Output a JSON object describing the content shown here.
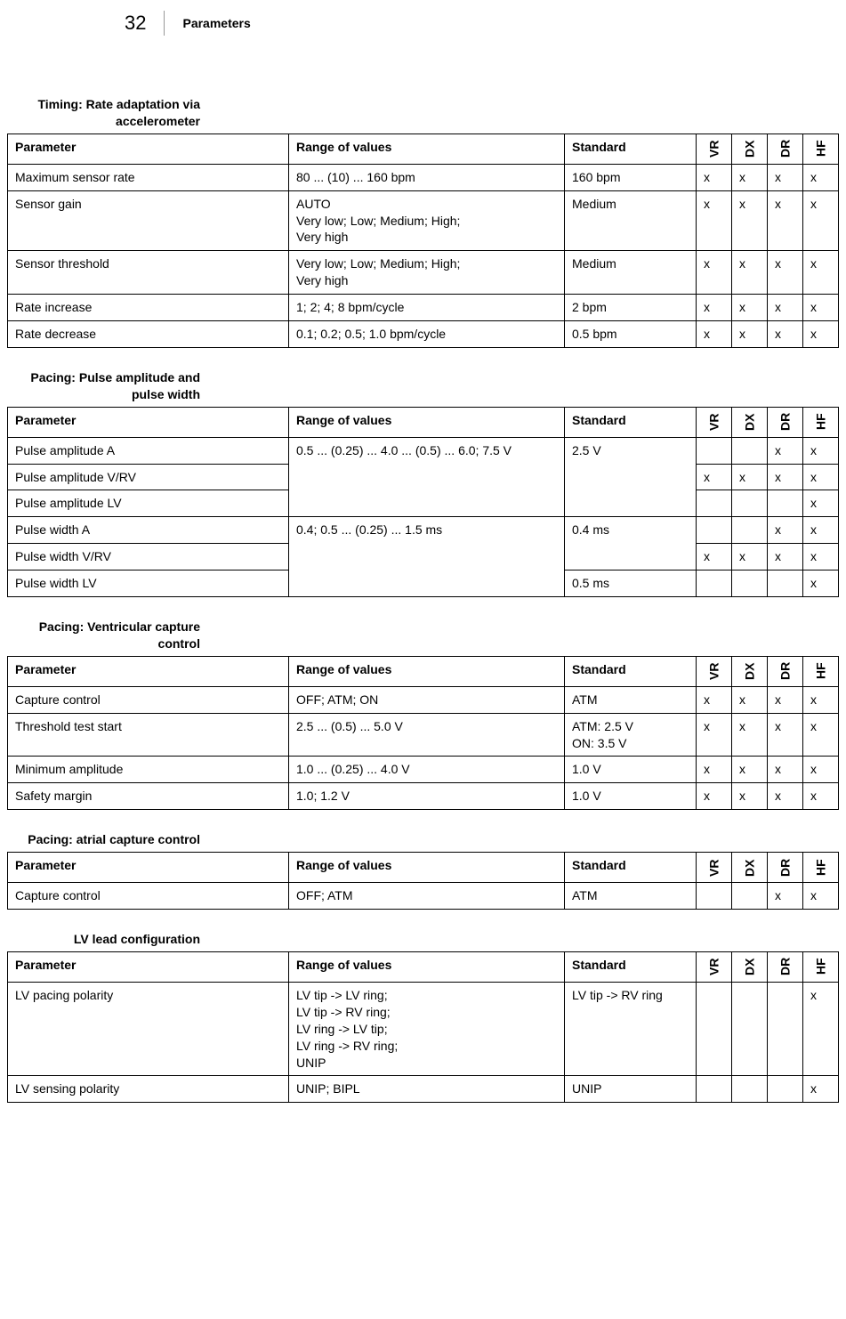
{
  "header": {
    "page_number": "32",
    "title": "Parameters"
  },
  "col_headers": {
    "parameter": "Parameter",
    "range": "Range of values",
    "standard": "Standard",
    "vr": "VR",
    "dx": "DX",
    "dr": "DR",
    "hf": "HF"
  },
  "sections": [
    {
      "title": "Timing: Rate adaptation via accelerometer",
      "rows": [
        {
          "param": "Maximum sensor rate",
          "range": "80 ... (10) ... 160 bpm",
          "std": "160 bpm",
          "vr": "x",
          "dx": "x",
          "dr": "x",
          "hf": "x"
        },
        {
          "param": "Sensor gain",
          "range": "AUTO\nVery low; Low; Medium; High;\nVery high",
          "std": "Medium",
          "vr": "x",
          "dx": "x",
          "dr": "x",
          "hf": "x"
        },
        {
          "param": "Sensor threshold",
          "range": "Very low; Low; Medium; High;\nVery high",
          "std": "Medium",
          "vr": "x",
          "dx": "x",
          "dr": "x",
          "hf": "x"
        },
        {
          "param": "Rate increase",
          "range": "1; 2; 4; 8 bpm/cycle",
          "std": "2 bpm",
          "vr": "x",
          "dx": "x",
          "dr": "x",
          "hf": "x"
        },
        {
          "param": "Rate decrease",
          "range": "0.1; 0.2; 0.5; 1.0 bpm/cycle",
          "std": "0.5 bpm",
          "vr": "x",
          "dx": "x",
          "dr": "x",
          "hf": "x"
        }
      ]
    },
    {
      "title": "Pacing: Pulse amplitude and pulse width",
      "rows": [
        {
          "param": "Pulse amplitude A",
          "range": "0.5 ... (0.25) ... 4.0 ... (0.5) ... 6.0; 7.5 V",
          "range_span": 3,
          "std": "2.5 V",
          "std_span": 3,
          "vr": "",
          "dx": "",
          "dr": "x",
          "hf": "x"
        },
        {
          "param": "Pulse amplitude V/RV",
          "vr": "x",
          "dx": "x",
          "dr": "x",
          "hf": "x"
        },
        {
          "param": "Pulse amplitude LV",
          "vr": "",
          "dx": "",
          "dr": "",
          "hf": "x"
        },
        {
          "param": "Pulse width A",
          "range": "0.4; 0.5 ... (0.25) ... 1.5 ms",
          "range_span": 3,
          "std": "0.4 ms",
          "std_span": 2,
          "vr": "",
          "dx": "",
          "dr": "x",
          "hf": "x"
        },
        {
          "param": "Pulse width V/RV",
          "vr": "x",
          "dx": "x",
          "dr": "x",
          "hf": "x"
        },
        {
          "param": "Pulse width LV",
          "std": "0.5 ms",
          "vr": "",
          "dx": "",
          "dr": "",
          "hf": "x"
        }
      ]
    },
    {
      "title": "Pacing: Ventricular capture control",
      "rows": [
        {
          "param": "Capture control",
          "range": "OFF; ATM; ON",
          "std": "ATM",
          "vr": "x",
          "dx": "x",
          "dr": "x",
          "hf": "x"
        },
        {
          "param": "Threshold test start",
          "range": "2.5 ... (0.5) ... 5.0 V",
          "std": " ATM: 2.5 V\nON: 3.5 V",
          "vr": "x",
          "dx": "x",
          "dr": "x",
          "hf": "x"
        },
        {
          "param": "Minimum amplitude",
          "range": "1.0 ... (0.25) ... 4.0 V",
          "std": "1.0 V",
          "vr": "x",
          "dx": "x",
          "dr": "x",
          "hf": "x"
        },
        {
          "param": "Safety margin",
          "range": "1.0; 1.2 V",
          "std": "1.0  V",
          "vr": "x",
          "dx": "x",
          "dr": "x",
          "hf": "x"
        }
      ]
    },
    {
      "title": "Pacing: atrial capture control",
      "rows": [
        {
          "param": "Capture control",
          "range": "OFF; ATM",
          "std": "ATM",
          "vr": "",
          "dx": "",
          "dr": "x",
          "hf": "x"
        }
      ]
    },
    {
      "title": "LV lead configuration",
      "rows": [
        {
          "param": "LV pacing polarity",
          "range": "LV tip -> LV ring;\nLV tip -> RV ring;\nLV ring -> LV tip;\nLV ring -> RV ring;\nUNIP",
          "std": "LV tip -> RV ring",
          "vr": "",
          "dx": "",
          "dr": "",
          "hf": "x"
        },
        {
          "param": "LV sensing polarity",
          "range": "UNIP; BIPL",
          "std": "UNIP",
          "vr": "",
          "dx": "",
          "dr": "",
          "hf": "x"
        }
      ]
    }
  ]
}
